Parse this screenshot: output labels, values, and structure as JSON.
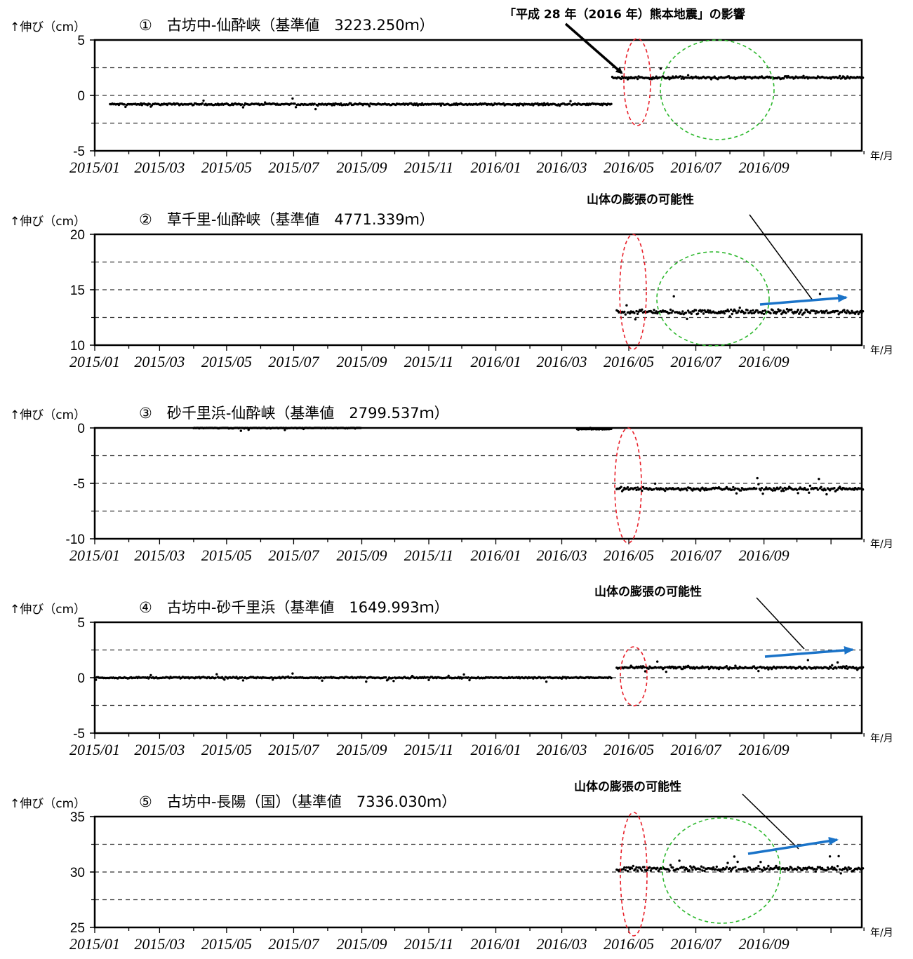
{
  "top_annotation": "「平成 28 年（2016 年）熊本地震」の影響",
  "x_tick_labels": [
    "2015/01",
    "2015/03",
    "2015/05",
    "2015/07",
    "2015/09",
    "2015/11",
    "2016/01",
    "2016/03",
    "2016/05",
    "2016/07",
    "2016/09"
  ],
  "x_unit_label": "年/月",
  "y_label": "↑伸び（cm）",
  "inflation_note": "山体の膨張の可能性",
  "colors": {
    "data_points": "#000000",
    "quake_ellipse": "#e8202a",
    "scatter_ellipse": "#2db82d",
    "trend_arrow": "#1a73c8",
    "reference_line": "#333333"
  },
  "chart_data": [
    {
      "type": "scatter",
      "title": "①　古坊中-仙酔峡（基準値　3223.250ｍ）",
      "ylabel": "↑伸び（cm）",
      "xlabel": "年/月",
      "ylim": [
        -5,
        5
      ],
      "yticks": [
        -5,
        0,
        5
      ],
      "reference_lines": [
        -2.5,
        0,
        2.5
      ],
      "x_range": [
        "2015/01",
        "2016/11"
      ],
      "segments": [
        {
          "from": "2015/01/15",
          "to": "2016/04/15",
          "level": -0.8,
          "spread": 0.2
        },
        {
          "from": "2016/04/16",
          "to": "2016/11/30",
          "level": 1.6,
          "spread": 0.3
        }
      ],
      "annotations": [
        "「平成 28 年（2016 年）熊本地震」の影響"
      ]
    },
    {
      "type": "scatter",
      "title": "②　草千里-仙酔峡（基準値　4771.339ｍ）",
      "ylabel": "↑伸び（cm）",
      "xlabel": "年/月",
      "ylim": [
        10,
        20
      ],
      "yticks": [
        10,
        15,
        20
      ],
      "reference_lines": [
        12.5,
        15,
        17.5
      ],
      "x_range": [
        "2015/01",
        "2016/11"
      ],
      "segments": [
        {
          "from": "2016/04/20",
          "to": "2016/11/30",
          "level": 13.0,
          "spread": 0.5
        }
      ],
      "annotations": [
        "山体の膨張の可能性"
      ]
    },
    {
      "type": "scatter",
      "title": "③　砂千里浜-仙酔峡（基準値　2799.537ｍ）",
      "ylabel": "↑伸び（cm）",
      "xlabel": "年/月",
      "ylim": [
        -10,
        0
      ],
      "yticks": [
        -10,
        -5,
        0
      ],
      "reference_lines": [
        -7.5,
        -5,
        -2.5
      ],
      "x_range": [
        "2015/01",
        "2016/11"
      ],
      "segments": [
        {
          "from": "2015/04/01",
          "to": "2015/08/31",
          "level": 0.0,
          "spread": 0.1
        },
        {
          "from": "2016/03/15",
          "to": "2016/04/15",
          "level": -0.1,
          "spread": 0.1
        },
        {
          "from": "2016/04/20",
          "to": "2016/11/30",
          "level": -5.5,
          "spread": 0.4
        }
      ]
    },
    {
      "type": "scatter",
      "title": "④　古坊中-砂千里浜（基準値　1649.993ｍ）",
      "ylabel": "↑伸び（cm）",
      "xlabel": "年/月",
      "ylim": [
        -5,
        5
      ],
      "yticks": [
        -5,
        0,
        5
      ],
      "reference_lines": [
        -2.5,
        0,
        2.5
      ],
      "x_range": [
        "2015/01",
        "2016/11"
      ],
      "segments": [
        {
          "from": "2015/01/01",
          "to": "2016/04/15",
          "level": 0.0,
          "spread": 0.15
        },
        {
          "from": "2016/04/20",
          "to": "2016/11/30",
          "level": 0.9,
          "spread": 0.3
        }
      ],
      "annotations": [
        "山体の膨張の可能性"
      ]
    },
    {
      "type": "scatter",
      "title": "⑤　古坊中-長陽（国）（基準値　7336.030ｍ）",
      "ylabel": "↑伸び（cm）",
      "xlabel": "年/月",
      "ylim": [
        25,
        35
      ],
      "yticks": [
        25,
        30,
        35
      ],
      "reference_lines": [
        27.5,
        30,
        32.5
      ],
      "x_range": [
        "2015/01",
        "2016/11"
      ],
      "segments": [
        {
          "from": "2016/04/20",
          "to": "2016/11/30",
          "level": 30.3,
          "spread": 0.5
        }
      ],
      "annotations": [
        "山体の膨張の可能性"
      ]
    }
  ]
}
